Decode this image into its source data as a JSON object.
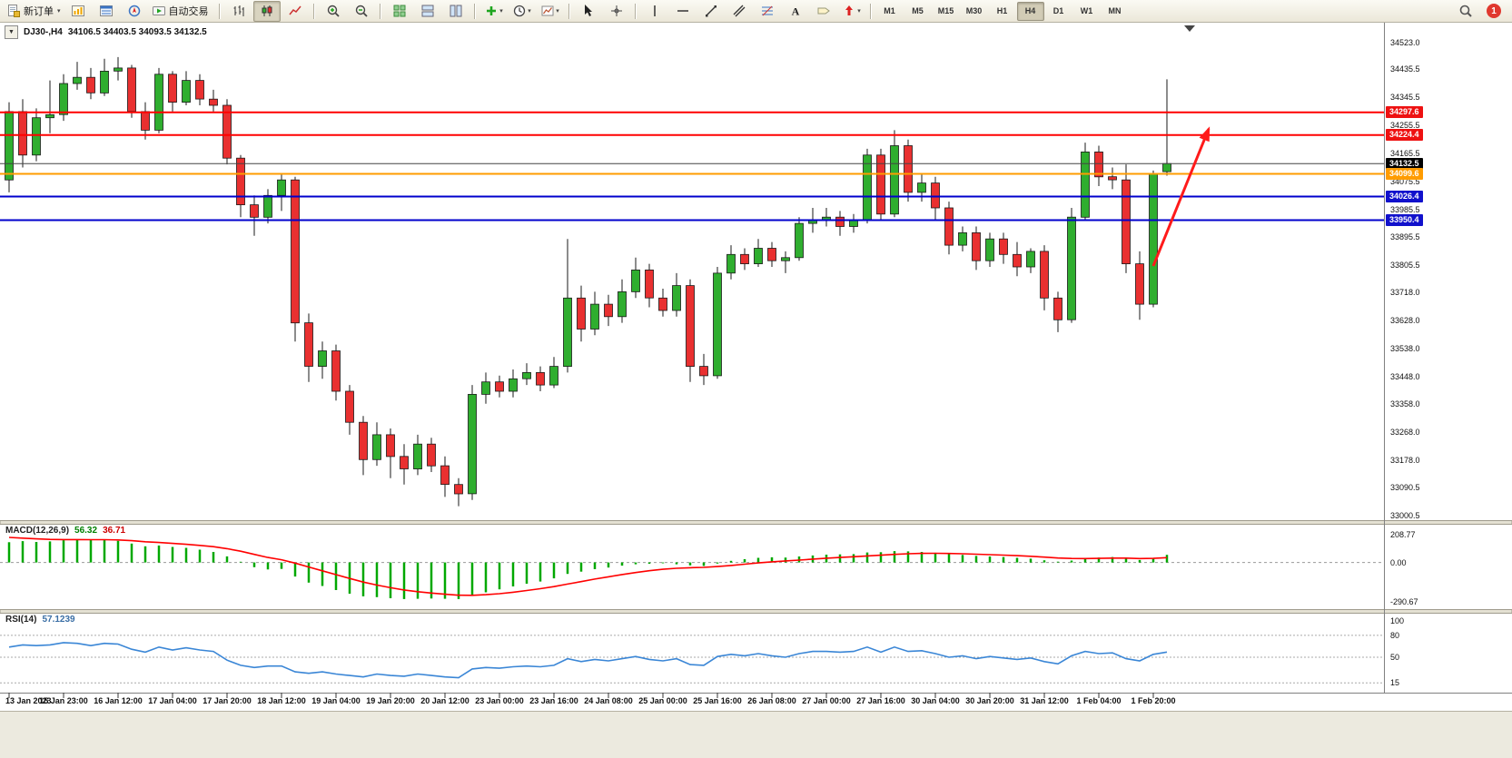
{
  "toolbar": {
    "items": [
      {
        "name": "new-order",
        "icon": "new-order",
        "label": "新订单",
        "caret": true
      },
      {
        "name": "market-watch",
        "icon": "market-watch"
      },
      {
        "name": "data-window",
        "icon": "data-window"
      },
      {
        "name": "navigator",
        "icon": "navigator"
      },
      {
        "name": "auto-trading",
        "icon": "autotrading",
        "label": "自动交易"
      },
      {
        "sep": true
      },
      {
        "name": "bar-chart-mode",
        "icon": "bar-chart"
      },
      {
        "name": "candle-chart-mode",
        "icon": "candle-chart",
        "active": true
      },
      {
        "name": "line-chart-mode",
        "icon": "line-chart"
      },
      {
        "sep": true
      },
      {
        "name": "zoom-in",
        "icon": "zoom-in"
      },
      {
        "name": "zoom-out",
        "icon": "zoom-out"
      },
      {
        "sep": true
      },
      {
        "name": "tile-windows",
        "icon": "tile-grid"
      },
      {
        "name": "tile-horizontally",
        "icon": "tile-h"
      },
      {
        "name": "tile-vertically",
        "icon": "tile-v"
      },
      {
        "sep": true
      },
      {
        "name": "add-indicator",
        "icon": "add-indicator",
        "caret": true
      },
      {
        "name": "periods",
        "icon": "periods",
        "caret": true
      },
      {
        "name": "templates",
        "icon": "templates",
        "caret": true
      },
      {
        "sep": true
      },
      {
        "name": "cursor",
        "icon": "cursor"
      },
      {
        "name": "crosshair",
        "icon": "crosshair"
      },
      {
        "sep": true
      },
      {
        "name": "vertical-line-tool",
        "icon": "vline"
      },
      {
        "name": "horizontal-line-tool",
        "icon": "hline"
      },
      {
        "name": "trendline-tool",
        "icon": "trendline"
      },
      {
        "name": "channel-tool",
        "icon": "channel"
      },
      {
        "name": "fibonacci-tool",
        "icon": "fibonacci"
      },
      {
        "name": "text-tool",
        "icon": "text"
      },
      {
        "name": "label-tool",
        "icon": "label"
      },
      {
        "name": "arrows-tool",
        "icon": "arrows",
        "caret": true
      },
      {
        "sep": true
      }
    ],
    "timeframes": [
      "M1",
      "M5",
      "M15",
      "M30",
      "H1",
      "H4",
      "D1",
      "W1",
      "MN"
    ],
    "active_timeframe": "H4",
    "right": {
      "notification_badge": "1"
    }
  },
  "chart": {
    "collapse_icon": "▼",
    "symbol_period": "DJ30-,H4",
    "ohlc": "34106.5 34403.5 34093.5 34132.5",
    "price_axis_labels": [
      "34523.0",
      "34435.5",
      "34345.5",
      "34255.5",
      "34165.5",
      "34075.5",
      "33985.5",
      "33895.5",
      "33805.5",
      "33718.0",
      "33628.0",
      "33538.0",
      "33448.0",
      "33358.0",
      "33268.0",
      "33178.0",
      "33090.5",
      "33000.5"
    ],
    "time_axis_labels": [
      "13 Jan 2023",
      "15 Jan 23:00",
      "16 Jan 12:00",
      "17 Jan 04:00",
      "17 Jan 20:00",
      "18 Jan 12:00",
      "19 Jan 04:00",
      "19 Jan 20:00",
      "20 Jan 12:00",
      "23 Jan 00:00",
      "23 Jan 16:00",
      "24 Jan 08:00",
      "25 Jan 00:00",
      "25 Jan 16:00",
      "26 Jan 08:00",
      "27 Jan 00:00",
      "27 Jan 16:00",
      "30 Jan 04:00",
      "30 Jan 20:00",
      "31 Jan 12:00",
      "1 Feb 04:00",
      "1 Feb 20:00"
    ],
    "hlines": [
      {
        "price": 34297.6,
        "color": "#ff0000",
        "width": 2,
        "tag": "34297.6",
        "tag_bg": "#ee1111"
      },
      {
        "price": 34224.4,
        "color": "#ff0000",
        "width": 2,
        "tag": "34224.4",
        "tag_bg": "#ee1111"
      },
      {
        "price": 34132.5,
        "color": "#444444",
        "width": 1,
        "tag": "34132.5",
        "tag_bg": "#000000",
        "current": true
      },
      {
        "price": 34099.6,
        "color": "#ff9c00",
        "width": 2,
        "tag": "34099.6",
        "tag_bg": "#ff9c00"
      },
      {
        "price": 34026.4,
        "color": "#0000cc",
        "width": 2,
        "tag": "34026.4",
        "tag_bg": "#1111cc"
      },
      {
        "price": 33950.4,
        "color": "#0000cc",
        "width": 2,
        "tag": "33950.4",
        "tag_bg": "#1111cc"
      }
    ],
    "colors": {
      "bull": "#2fae2f",
      "bear": "#e93030",
      "outline": "#1a1a1a",
      "macd_hist": "#00a800",
      "macd_signal": "#ff0000",
      "rsi": "#3a86d6"
    }
  },
  "chart_data": {
    "type": "candlestick",
    "symbol": "DJ30-",
    "period": "H4",
    "ohlc_current": {
      "open": 34106.5,
      "high": 34403.5,
      "low": 34093.5,
      "close": 34132.5
    },
    "candles": [
      [
        34080,
        34330,
        34040,
        34300
      ],
      [
        34300,
        34340,
        34120,
        34160
      ],
      [
        34160,
        34310,
        34140,
        34280
      ],
      [
        34280,
        34400,
        34230,
        34290
      ],
      [
        34290,
        34420,
        34270,
        34390
      ],
      [
        34390,
        34460,
        34370,
        34410
      ],
      [
        34410,
        34440,
        34340,
        34360
      ],
      [
        34360,
        34470,
        34350,
        34430
      ],
      [
        34430,
        34475,
        34400,
        34440
      ],
      [
        34440,
        34450,
        34280,
        34300
      ],
      [
        34300,
        34330,
        34210,
        34240
      ],
      [
        34240,
        34440,
        34230,
        34420
      ],
      [
        34420,
        34430,
        34300,
        34330
      ],
      [
        34330,
        34430,
        34320,
        34400
      ],
      [
        34400,
        34420,
        34320,
        34340
      ],
      [
        34340,
        34370,
        34300,
        34320
      ],
      [
        34320,
        34340,
        34130,
        34150
      ],
      [
        34150,
        34160,
        33960,
        34000
      ],
      [
        34000,
        34030,
        33900,
        33960
      ],
      [
        33960,
        34050,
        33940,
        34030
      ],
      [
        34030,
        34100,
        33980,
        34080
      ],
      [
        34080,
        34090,
        33560,
        33620
      ],
      [
        33620,
        33650,
        33430,
        33480
      ],
      [
        33480,
        33560,
        33440,
        33530
      ],
      [
        33530,
        33550,
        33370,
        33400
      ],
      [
        33400,
        33420,
        33260,
        33300
      ],
      [
        33300,
        33320,
        33130,
        33180
      ],
      [
        33180,
        33300,
        33160,
        33260
      ],
      [
        33260,
        33280,
        33120,
        33190
      ],
      [
        33190,
        33230,
        33100,
        33150
      ],
      [
        33150,
        33260,
        33130,
        33230
      ],
      [
        33230,
        33250,
        33140,
        33160
      ],
      [
        33160,
        33190,
        33060,
        33100
      ],
      [
        33100,
        33120,
        33030,
        33070
      ],
      [
        33070,
        33420,
        33050,
        33390
      ],
      [
        33390,
        33460,
        33360,
        33430
      ],
      [
        33430,
        33450,
        33380,
        33400
      ],
      [
        33400,
        33470,
        33380,
        33440
      ],
      [
        33440,
        33490,
        33420,
        33460
      ],
      [
        33460,
        33480,
        33400,
        33420
      ],
      [
        33420,
        33510,
        33410,
        33480
      ],
      [
        33480,
        33890,
        33460,
        33700
      ],
      [
        33700,
        33740,
        33560,
        33600
      ],
      [
        33600,
        33720,
        33580,
        33680
      ],
      [
        33680,
        33710,
        33610,
        33640
      ],
      [
        33640,
        33760,
        33620,
        33720
      ],
      [
        33720,
        33830,
        33700,
        33790
      ],
      [
        33790,
        33810,
        33670,
        33700
      ],
      [
        33700,
        33730,
        33640,
        33660
      ],
      [
        33660,
        33780,
        33640,
        33740
      ],
      [
        33740,
        33760,
        33430,
        33480
      ],
      [
        33480,
        33520,
        33420,
        33450
      ],
      [
        33450,
        33800,
        33440,
        33780
      ],
      [
        33780,
        33870,
        33760,
        33840
      ],
      [
        33840,
        33860,
        33790,
        33810
      ],
      [
        33810,
        33890,
        33800,
        33860
      ],
      [
        33860,
        33880,
        33800,
        33820
      ],
      [
        33820,
        33850,
        33780,
        33830
      ],
      [
        33830,
        33960,
        33820,
        33940
      ],
      [
        33940,
        33990,
        33910,
        33950
      ],
      [
        33950,
        33990,
        33930,
        33960
      ],
      [
        33960,
        33980,
        33900,
        33930
      ],
      [
        33930,
        33970,
        33910,
        33950
      ],
      [
        33950,
        34180,
        33940,
        34160
      ],
      [
        34160,
        34180,
        33950,
        33970
      ],
      [
        33970,
        34240,
        33960,
        34190
      ],
      [
        34190,
        34210,
        34010,
        34040
      ],
      [
        34040,
        34100,
        34010,
        34070
      ],
      [
        34070,
        34090,
        33950,
        33990
      ],
      [
        33990,
        34010,
        33840,
        33870
      ],
      [
        33870,
        33930,
        33850,
        33910
      ],
      [
        33910,
        33930,
        33790,
        33820
      ],
      [
        33820,
        33910,
        33800,
        33890
      ],
      [
        33890,
        33910,
        33810,
        33840
      ],
      [
        33840,
        33880,
        33770,
        33800
      ],
      [
        33800,
        33860,
        33780,
        33850
      ],
      [
        33850,
        33870,
        33660,
        33700
      ],
      [
        33700,
        33720,
        33590,
        33630
      ],
      [
        33630,
        33990,
        33620,
        33960
      ],
      [
        33960,
        34200,
        33950,
        34170
      ],
      [
        34170,
        34190,
        34060,
        34090
      ],
      [
        34090,
        34120,
        34050,
        34080
      ],
      [
        34080,
        34130,
        33780,
        33810
      ],
      [
        33810,
        33850,
        33630,
        33680
      ],
      [
        33680,
        34110,
        33670,
        34100
      ],
      [
        34106.5,
        34403.5,
        34093.5,
        34132.5
      ]
    ],
    "macd": {
      "label": "MACD(12,26,9)",
      "main_value": "56.32",
      "signal_value": "36.71",
      "axis_labels": [
        "208.77",
        "0.00",
        "-290.67"
      ],
      "histogram": [
        150,
        158,
        152,
        156,
        165,
        170,
        166,
        168,
        160,
        140,
        120,
        126,
        115,
        108,
        95,
        78,
        45,
        5,
        -35,
        -52,
        -48,
        -105,
        -150,
        -175,
        -205,
        -232,
        -252,
        -258,
        -266,
        -272,
        -270,
        -268,
        -270,
        -272,
        -248,
        -222,
        -200,
        -178,
        -158,
        -142,
        -118,
        -85,
        -68,
        -50,
        -38,
        -24,
        -14,
        -10,
        -6,
        -14,
        -22,
        -26,
        -8,
        12,
        24,
        34,
        38,
        36,
        44,
        52,
        58,
        60,
        62,
        74,
        76,
        84,
        82,
        78,
        72,
        62,
        56,
        48,
        44,
        40,
        34,
        28,
        16,
        6,
        14,
        28,
        36,
        40,
        30,
        18,
        34,
        56.32
      ]
    },
    "rsi": {
      "label": "RSI(14)",
      "value": "57.1239",
      "levels": [
        80,
        50,
        15
      ],
      "axis_labels": [
        "100",
        "80",
        "50",
        "15"
      ],
      "series": [
        64,
        67,
        66,
        67,
        70,
        69,
        66,
        69,
        68,
        61,
        57,
        64,
        60,
        63,
        60,
        58,
        46,
        39,
        36,
        38,
        38,
        30,
        28,
        30,
        27,
        25,
        23,
        27,
        25,
        24,
        27,
        25,
        23,
        22,
        34,
        36,
        35,
        37,
        38,
        37,
        39,
        48,
        44,
        47,
        45,
        48,
        51,
        47,
        45,
        48,
        40,
        39,
        51,
        54,
        52,
        55,
        52,
        50,
        55,
        58,
        58,
        57,
        58,
        64,
        57,
        64,
        58,
        59,
        55,
        50,
        52,
        48,
        51,
        49,
        47,
        49,
        44,
        41,
        52,
        58,
        55,
        56,
        48,
        45,
        54,
        57.12
      ]
    }
  },
  "annotations": {
    "trend_arrow": {
      "from": [
        1270,
        268
      ],
      "to": [
        1331,
        117
      ],
      "color": "#ff1a1a"
    }
  }
}
